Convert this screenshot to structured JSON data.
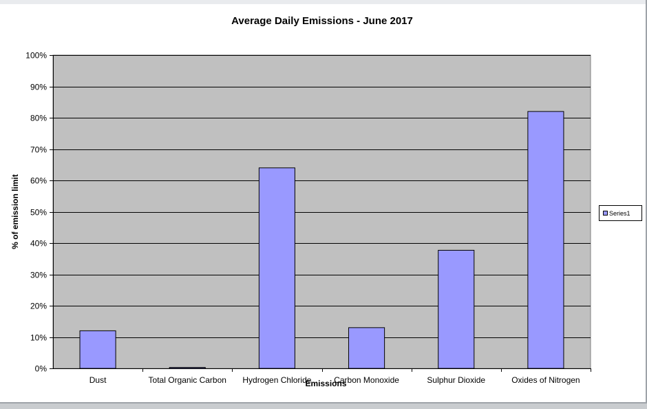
{
  "chart_data": {
    "type": "bar",
    "title": "Average Daily Emissions - June 2017",
    "xlabel": "Emissions",
    "ylabel": "% of emission limit",
    "categories": [
      "Dust",
      "Total Organic Carbon",
      "Hydrogen Chloride",
      "Carbon Monoxide",
      "Sulphur Dioxide",
      "Oxides of Nitrogen"
    ],
    "series": [
      {
        "name": "Series1",
        "values": [
          12,
          0.3,
          64,
          13,
          37.7,
          82
        ]
      }
    ],
    "ylim": [
      0,
      100
    ],
    "yticks": [
      "0%",
      "10%",
      "20%",
      "30%",
      "40%",
      "50%",
      "60%",
      "70%",
      "80%",
      "90%",
      "100%"
    ],
    "grid": true,
    "legend": "right",
    "colors": {
      "bar": "#9999ff",
      "plot_background": "#c0c0c0",
      "gridline": "#000000"
    }
  }
}
